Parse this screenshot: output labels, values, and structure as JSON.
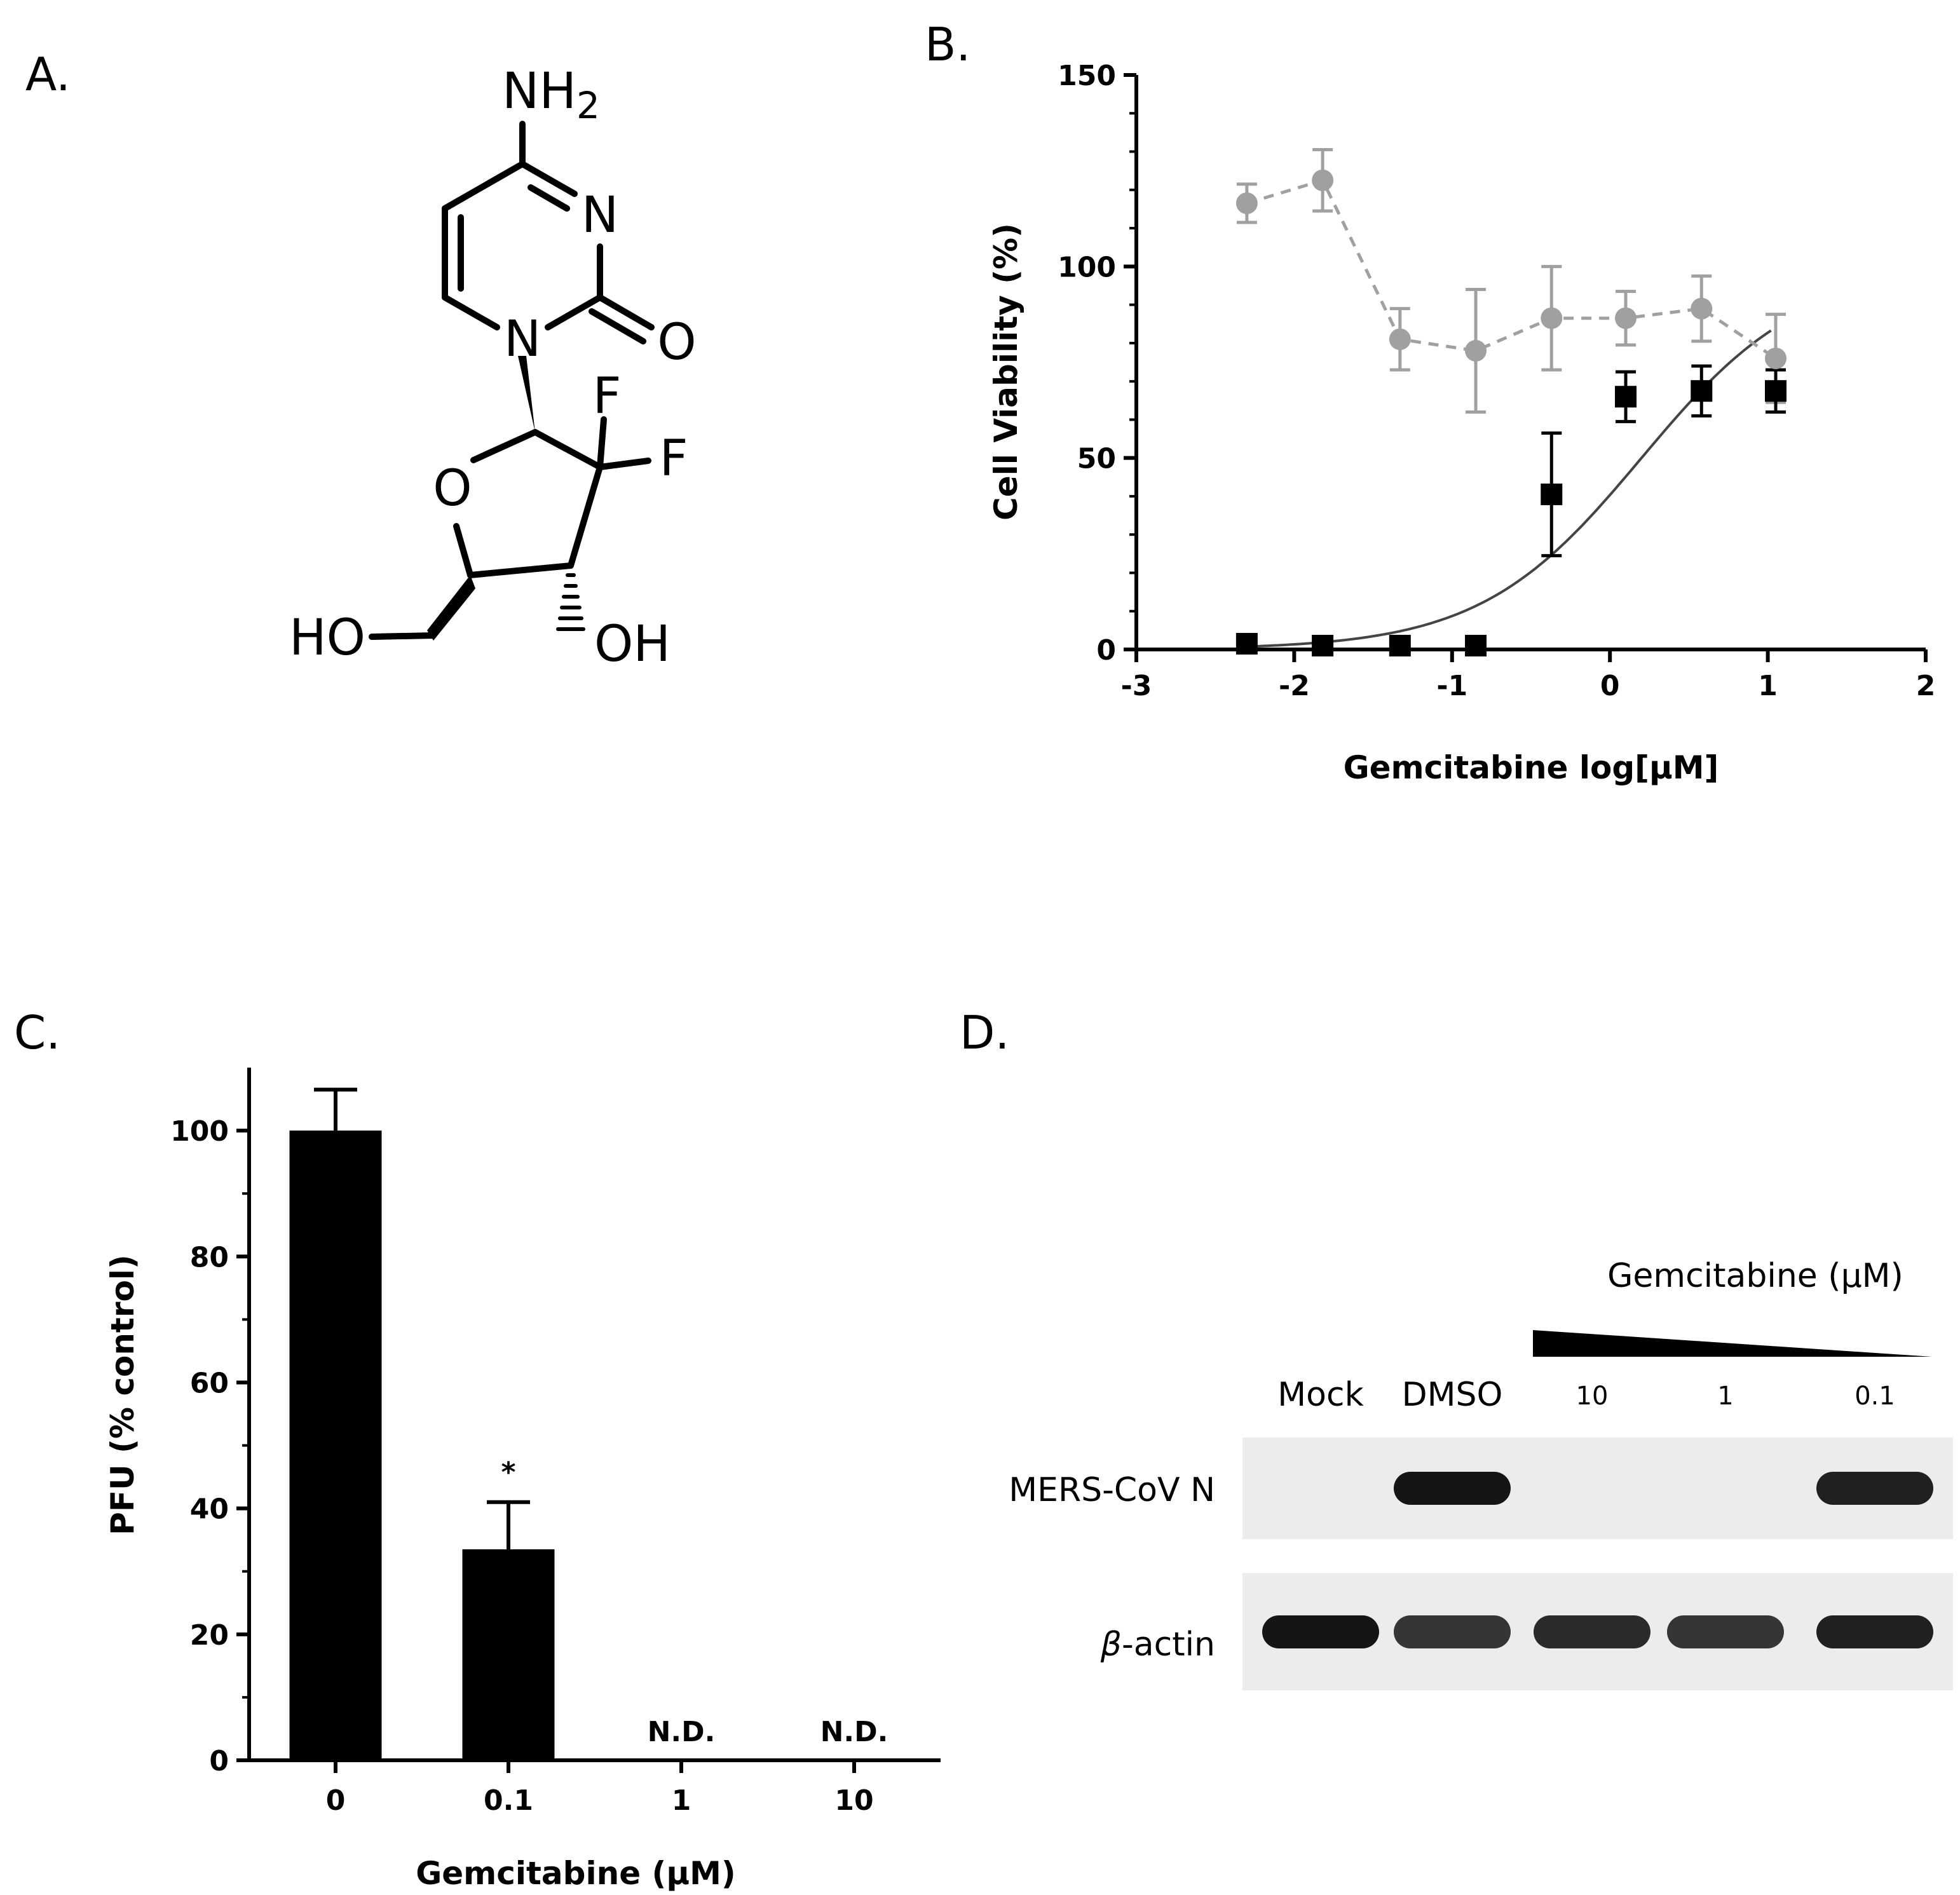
{
  "panels": {
    "a": {
      "label": "A.",
      "atoms": {
        "nh2_n": "NH",
        "nh2_sub": "2",
        "n3": "N",
        "n1": "N",
        "o2": "O",
        "f1": "F",
        "f2": "F",
        "o_ring": "O",
        "ho": "HO",
        "oh": "OH"
      }
    },
    "b": {
      "label": "B."
    },
    "c": {
      "label": "C."
    },
    "d": {
      "label": "D.",
      "gradient_title": "Gemcitabine (µM)",
      "lanes": [
        "Mock",
        "DMSO",
        "10",
        "1",
        "0.1"
      ],
      "rows": [
        {
          "label": "MERS-CoV N",
          "band_intensity": [
            0.0,
            1.0,
            0.0,
            0.0,
            0.95
          ]
        },
        {
          "label_prefix": "β",
          "label_rest": "-actin",
          "band_intensity": [
            1.0,
            0.85,
            0.9,
            0.85,
            0.95
          ]
        }
      ],
      "colors": {
        "membrane": "#ececec",
        "band": "#151515"
      }
    }
  },
  "chart_data": [
    {
      "type": "scatter",
      "xlabel": "Gemcitabine log[µM]",
      "ylabel": "Cell Viability (%)",
      "xlim": [
        -3,
        2
      ],
      "ylim": [
        0,
        150
      ],
      "xticks": [
        -3,
        -2,
        -1,
        0,
        1,
        2
      ],
      "yticks": [
        0,
        50,
        100,
        150
      ],
      "series": [
        {
          "marker": "square",
          "color": "#000000",
          "x": [
            -2.3,
            -1.82,
            -1.33,
            -0.85,
            -0.37,
            0.1,
            0.58,
            1.05
          ],
          "y": [
            1.5,
            1,
            1,
            1,
            40.5,
            66,
            67.5,
            67.5
          ],
          "error": [
            0,
            0,
            0,
            0,
            16,
            6.5,
            6.5,
            5.5
          ],
          "fit": {
            "model": "sigmoid",
            "bottom": 0,
            "top": 100,
            "log_ec50": 0.2,
            "hill": 0.85,
            "x_range": [
              -2.3,
              1.02
            ]
          }
        },
        {
          "marker": "circle",
          "color": "#a0a0a0",
          "line": "dashed",
          "x": [
            -2.3,
            -1.82,
            -1.33,
            -0.85,
            -0.37,
            0.1,
            0.58,
            1.05
          ],
          "y": [
            116.5,
            122.5,
            81,
            78,
            86.5,
            86.5,
            89,
            76
          ],
          "error": [
            5,
            8,
            8,
            16,
            13.5,
            7,
            8.5,
            11.5
          ]
        }
      ]
    },
    {
      "type": "bar",
      "xlabel": "Gemcitabine  (µM)",
      "ylabel": "PFU (% control)",
      "categories": [
        "0",
        "0.1",
        "1",
        "10"
      ],
      "values": [
        100,
        33.5,
        0,
        0
      ],
      "error": [
        6.5,
        7.5,
        0,
        0
      ],
      "bar_annotations": [
        "",
        "*",
        "N.D.",
        "N.D."
      ],
      "ylim": [
        0,
        110
      ],
      "yticks": [
        0,
        20,
        40,
        60,
        80,
        100
      ]
    }
  ]
}
